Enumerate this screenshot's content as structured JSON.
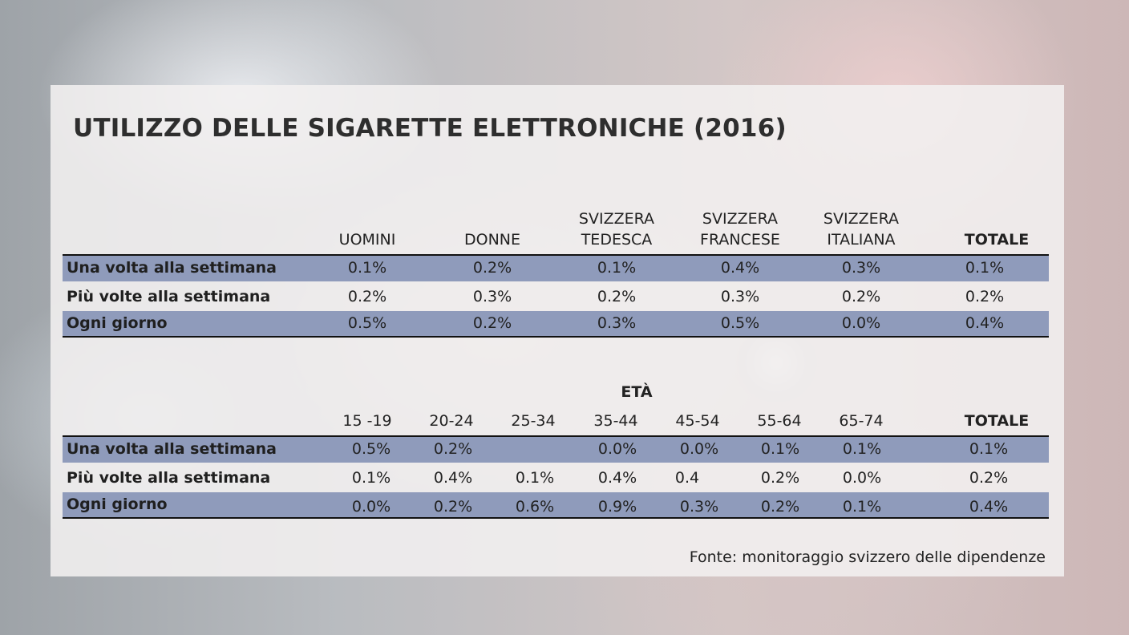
{
  "title": "UTILIZZO DELLE SIGARETTE ELETTRONICHE (2016)",
  "source": "Fonte: monitoraggio svizzero delle dipendenze",
  "chart_data": [
    {
      "type": "table",
      "columns": [
        {
          "line1": "",
          "line2": "UOMINI"
        },
        {
          "line1": "",
          "line2": "DONNE"
        },
        {
          "line1": "SVIZZERA",
          "line2": "TEDESCA"
        },
        {
          "line1": "SVIZZERA",
          "line2": "FRANCESE"
        },
        {
          "line1": "SVIZZERA",
          "line2": "ITALIANA"
        },
        {
          "line1": "",
          "line2": "TOTALE"
        }
      ],
      "rows": [
        {
          "label": "Una volta alla settimana",
          "values": [
            "0.1%",
            "0.2%",
            "0.1%",
            "0.4%",
            "0.3%",
            "0.1%"
          ]
        },
        {
          "label": "Più volte alla settimana",
          "values": [
            "0.2%",
            "0.3%",
            "0.2%",
            "0.3%",
            "0.2%",
            "0.2%"
          ]
        },
        {
          "label": "Ogni giorno",
          "values": [
            "0.5%",
            "0.2%",
            "0.3%",
            "0.5%",
            "0.0%",
            "0.4%"
          ]
        }
      ]
    },
    {
      "type": "table",
      "group_label": "ETÀ",
      "columns": [
        "15 -19",
        "20-24",
        "25-34",
        "35-44",
        "45-54",
        "55-64",
        "65-74",
        "TOTALE"
      ],
      "rows": [
        {
          "label": "Una volta alla settimana",
          "values": [
            "0.5%",
            "0.2%",
            "",
            "0.0%",
            "0.0%",
            "0.1%",
            "0.1%",
            "0.1%"
          ]
        },
        {
          "label": "Più volte alla settimana",
          "values": [
            "0.1%",
            "0.4%",
            "0.1%",
            "0.4%",
            "0.4",
            "0.2%",
            "0.0%",
            "0.2%"
          ]
        },
        {
          "label": "Ogni giorno",
          "values": [
            "0.0%",
            "0.2%",
            "0.6%",
            "0.9%",
            "0.3%",
            "0.2%",
            "0.1%",
            "0.4%"
          ]
        }
      ]
    }
  ]
}
